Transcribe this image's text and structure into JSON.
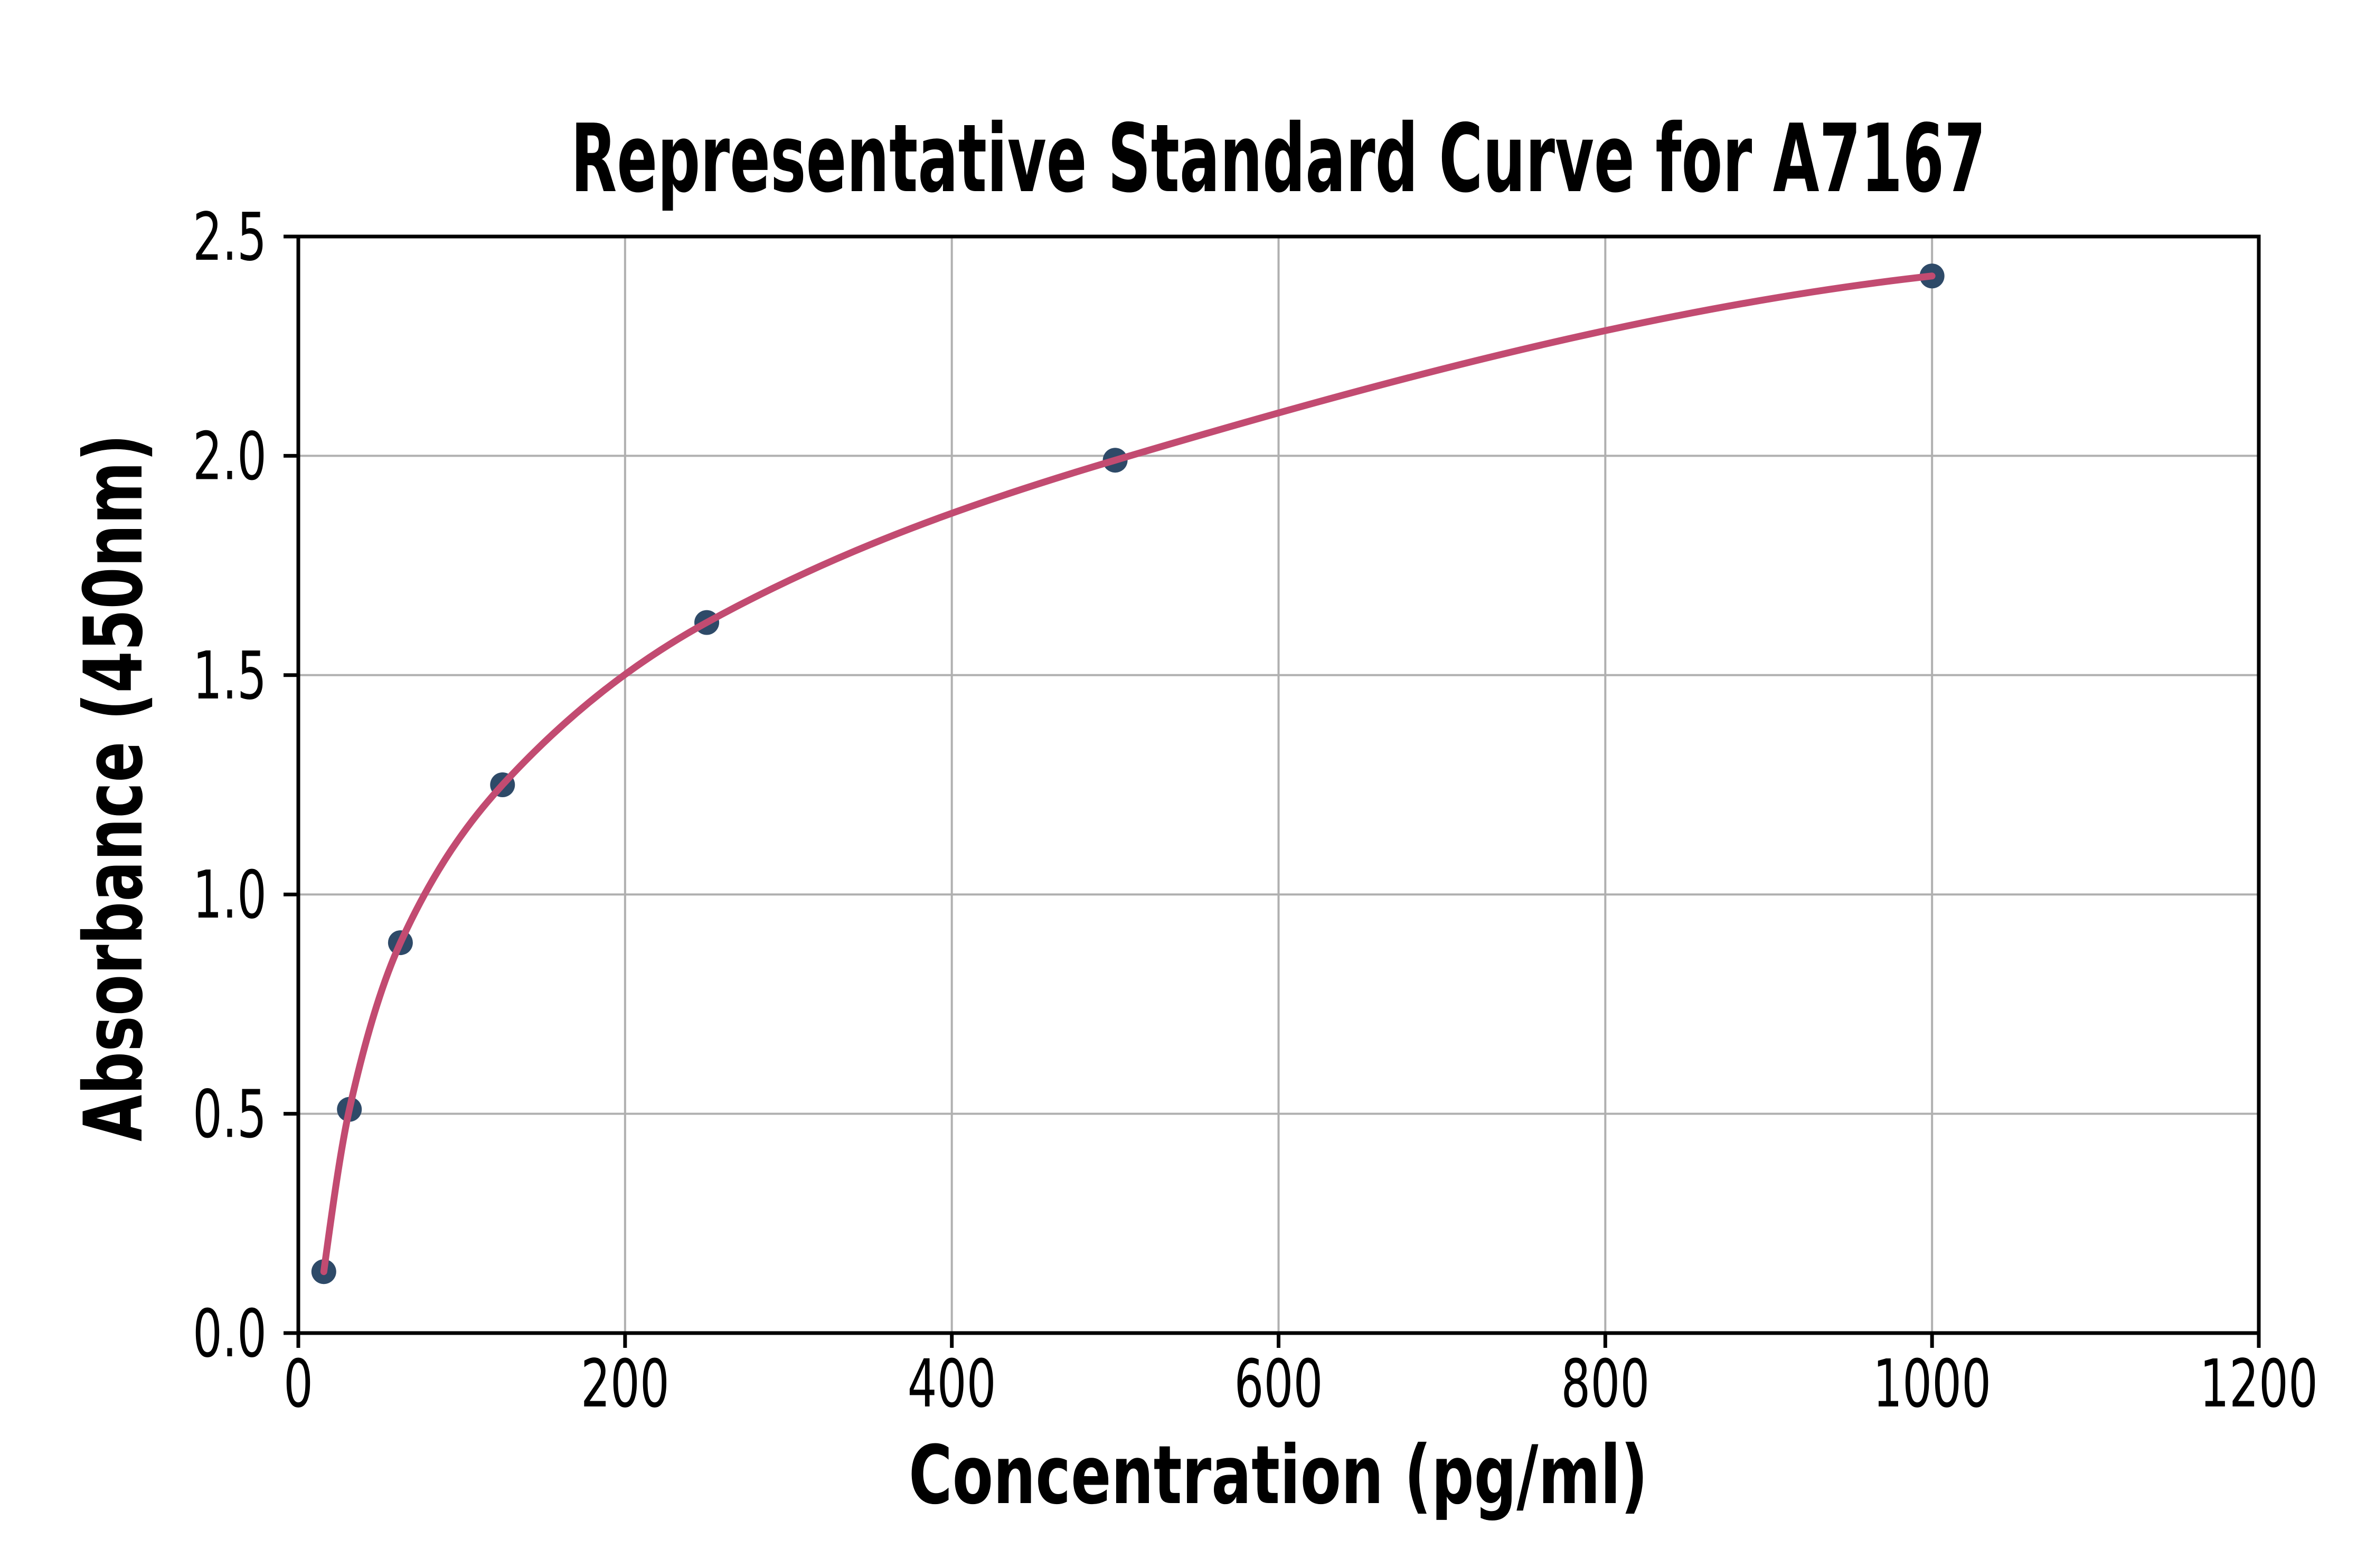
{
  "figure": {
    "background": "#ffffff",
    "description": "ELISA standard curve plot with scatter points and fitted curve"
  },
  "chart_data": {
    "type": "scatter",
    "title": "Representative Standard Curve for A7167",
    "xlabel": "Concentration (pg/ml)",
    "ylabel": "Absorbance (450nm)",
    "x": [
      15.6,
      31.25,
      62.5,
      125,
      250,
      500,
      1000
    ],
    "y": [
      0.14,
      0.51,
      0.89,
      1.25,
      1.62,
      1.99,
      2.41
    ],
    "fit_curve": true,
    "fit_curve_span": [
      15.6,
      1000
    ],
    "xlim": [
      0,
      1200
    ],
    "ylim": [
      0,
      2.5
    ],
    "xticks": [
      "0",
      "200",
      "400",
      "600",
      "800",
      "1000",
      "1200"
    ],
    "yticks": [
      "0.0",
      "0.5",
      "1.0",
      "1.5",
      "2.0",
      "2.5"
    ],
    "grid": true,
    "legend_position": "none",
    "colors": {
      "curve": "#c24b71",
      "points": "#2e4a68",
      "grid": "#b0b0b0",
      "axis": "#000000",
      "text": "#000000",
      "background": "#ffffff"
    }
  }
}
